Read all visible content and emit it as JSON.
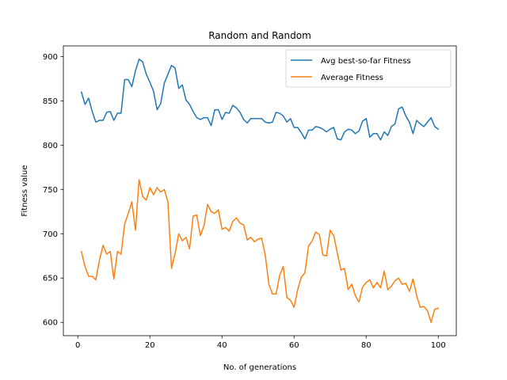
{
  "chart_data": {
    "type": "line",
    "title": "Random and Random",
    "xlabel": "No. of generations",
    "ylabel": "Fitness value",
    "xlim": [
      -4,
      105
    ],
    "ylim": [
      585,
      912
    ],
    "xticks": [
      0,
      20,
      40,
      60,
      80,
      100
    ],
    "yticks": [
      600,
      650,
      700,
      750,
      800,
      850,
      900
    ],
    "grid": false,
    "legend_position": "top-right",
    "x": [
      1,
      2,
      3,
      4,
      5,
      6,
      7,
      8,
      9,
      10,
      11,
      12,
      13,
      14,
      15,
      16,
      17,
      18,
      19,
      20,
      21,
      22,
      23,
      24,
      25,
      26,
      27,
      28,
      29,
      30,
      31,
      32,
      33,
      34,
      35,
      36,
      37,
      38,
      39,
      40,
      41,
      42,
      43,
      44,
      45,
      46,
      47,
      48,
      49,
      50,
      51,
      52,
      53,
      54,
      55,
      56,
      57,
      58,
      59,
      60,
      61,
      62,
      63,
      64,
      65,
      66,
      67,
      68,
      69,
      70,
      71,
      72,
      73,
      74,
      75,
      76,
      77,
      78,
      79,
      80,
      81,
      82,
      83,
      84,
      85,
      86,
      87,
      88,
      89,
      90,
      91,
      92,
      93,
      94,
      95,
      96,
      97,
      98,
      99,
      100
    ],
    "series": [
      {
        "name": "Avg best-so-far Fitness",
        "color": "#1f77b4",
        "values": [
          860,
          846,
          853,
          838,
          826,
          828,
          828,
          837,
          838,
          828,
          836,
          836,
          874,
          874,
          866,
          884,
          897,
          894,
          880,
          871,
          861,
          840,
          847,
          870,
          880,
          890,
          887,
          864,
          868,
          851,
          846,
          838,
          831,
          829,
          831,
          831,
          822,
          840,
          840,
          829,
          837,
          836,
          845,
          842,
          837,
          829,
          825,
          830,
          830,
          830,
          830,
          826,
          825,
          826,
          837,
          836,
          833,
          826,
          830,
          820,
          820,
          814,
          807,
          817,
          817,
          821,
          820,
          818,
          815,
          818,
          820,
          807,
          806,
          815,
          818,
          817,
          813,
          816,
          827,
          830,
          809,
          813,
          813,
          806,
          815,
          811,
          821,
          824,
          841,
          843,
          833,
          826,
          813,
          828,
          824,
          821,
          826,
          831,
          821,
          818
        ]
      },
      {
        "name": "Average Fitness",
        "color": "#ff7f0e",
        "values": [
          680,
          663,
          652,
          652,
          648,
          670,
          687,
          677,
          680,
          649,
          680,
          677,
          711,
          723,
          736,
          704,
          761,
          742,
          738,
          752,
          744,
          752,
          747,
          750,
          736,
          661,
          678,
          700,
          692,
          696,
          683,
          720,
          721,
          698,
          709,
          733,
          725,
          723,
          727,
          705,
          707,
          703,
          714,
          718,
          712,
          710,
          693,
          696,
          691,
          694,
          695,
          676,
          643,
          632,
          632,
          653,
          663,
          628,
          625,
          617,
          637,
          651,
          656,
          686,
          692,
          702,
          699,
          676,
          675,
          704,
          698,
          678,
          659,
          661,
          637,
          643,
          630,
          623,
          640,
          645,
          648,
          639,
          645,
          639,
          658,
          637,
          641,
          647,
          650,
          643,
          644,
          635,
          649,
          630,
          617,
          618,
          613,
          600,
          615,
          616
        ]
      }
    ]
  }
}
